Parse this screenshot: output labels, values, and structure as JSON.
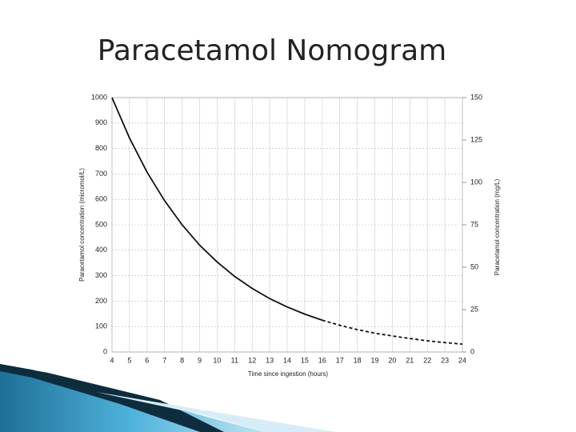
{
  "chart_data": {
    "type": "line",
    "title": "Paracetamol Nomogram",
    "x_label": "Time since ingestion (hours)",
    "y_label": "Paracetamol concentration (micromol/L)",
    "y2_label": "Paracetamol concentration (mg/L)",
    "x": [
      4,
      5,
      6,
      7,
      8,
      9,
      10,
      11,
      12,
      13,
      14,
      15,
      16,
      17,
      18,
      19,
      20,
      21,
      22,
      23,
      24
    ],
    "series": [
      {
        "color": "#111111",
        "dashed": false,
        "values": [
          1000,
          841,
          707,
          595,
          500,
          420,
          354,
          297,
          250,
          210,
          177,
          149,
          125,
          null,
          null,
          null,
          null,
          null,
          null,
          null,
          null
        ]
      },
      {
        "color": "#111111",
        "dashed": true,
        "values": [
          null,
          null,
          null,
          null,
          null,
          null,
          null,
          null,
          null,
          null,
          null,
          null,
          125,
          105,
          88,
          74,
          63,
          53,
          44,
          37,
          31
        ]
      }
    ],
    "xlim": [
      4,
      24
    ],
    "xticks": [
      4,
      5,
      6,
      7,
      8,
      9,
      10,
      11,
      12,
      13,
      14,
      15,
      16,
      17,
      18,
      19,
      20,
      21,
      22,
      23,
      24
    ],
    "ylim": [
      0,
      1000
    ],
    "yticks": [
      0,
      100,
      200,
      300,
      400,
      500,
      600,
      700,
      800,
      900,
      1000
    ],
    "y2lim": [
      0,
      150
    ],
    "y2ticks": [
      0,
      25,
      50,
      75,
      100,
      125,
      150
    ],
    "grid": true
  }
}
